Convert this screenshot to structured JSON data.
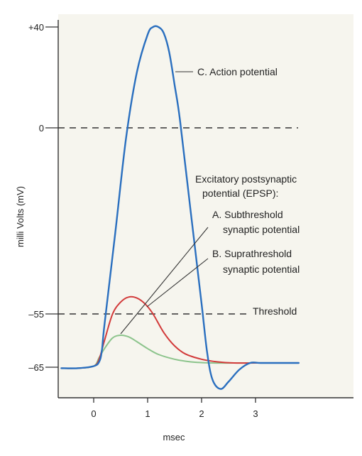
{
  "colors": {
    "background": "#ffffff",
    "plot_background": "#f6f5ee",
    "axis": "#333333",
    "action_potential": "#2a6fbf",
    "suprathreshold": "#d23a3a",
    "subthreshold": "#8cc48c",
    "reference_lines": "#333333",
    "leader_lines": "#333333"
  },
  "chart_data": {
    "type": "line",
    "xlabel": "msec",
    "ylabel": "milli Volts (mV)",
    "xlim": [
      -0.6,
      3.9
    ],
    "ylim": [
      -70,
      42
    ],
    "x_ticks": [
      0,
      1,
      2,
      3
    ],
    "x_tick_labels": [
      "0",
      "1",
      "2",
      "3"
    ],
    "y_ticks": [
      40,
      0,
      -55,
      -65
    ],
    "y_tick_labels": [
      "+40",
      "0",
      "–55",
      "–65"
    ],
    "grid": false,
    "legend": "none",
    "reference_lines": [
      {
        "y": 0,
        "style": "dashed",
        "label": ""
      },
      {
        "y": -55,
        "style": "dashed",
        "label": "Threshold"
      }
    ],
    "annotations": {
      "action_potential": "C.  Action potential",
      "epsp_header_line1": "Excitatory postsynaptic",
      "epsp_header_line2": "potential (EPSP):",
      "subthreshold_line1": "A.  Subthreshold",
      "subthreshold_line2": "synaptic potential",
      "suprathreshold_line1": "B.  Suprathreshold",
      "suprathreshold_line2": "synaptic potential"
    },
    "series": [
      {
        "key": "action_potential",
        "color": "#2a6fbf",
        "x": [
          -0.6,
          -0.3,
          0.0,
          0.1,
          0.15,
          0.2,
          0.4,
          0.6,
          0.8,
          1.0,
          1.1,
          1.2,
          1.3,
          1.4,
          1.5,
          1.6,
          1.8,
          2.0,
          2.1,
          2.2,
          2.35,
          2.5,
          2.7,
          2.9,
          3.1,
          3.5,
          3.8
        ],
        "y": [
          -65.2,
          -65.2,
          -64.8,
          -64.0,
          -62.0,
          -57.0,
          -31.0,
          -3.0,
          22.0,
          37.0,
          40.0,
          40.0,
          37.5,
          30.0,
          17.0,
          3.0,
          -25.0,
          -52.0,
          -62.0,
          -67.5,
          -69.5,
          -68.0,
          -65.5,
          -64.2,
          -64.2,
          -64.2,
          -64.2
        ]
      },
      {
        "key": "suprathreshold",
        "color": "#d23a3a",
        "x": [
          -0.6,
          -0.3,
          0.0,
          0.1,
          0.2,
          0.35,
          0.5,
          0.65,
          0.8,
          0.95,
          1.1,
          1.3,
          1.5,
          1.7,
          2.0,
          2.3,
          2.6,
          3.0,
          3.5,
          3.8
        ],
        "y": [
          -65.2,
          -65.2,
          -64.8,
          -63.5,
          -60.0,
          -55.0,
          -51.5,
          -50.0,
          -50.3,
          -52.0,
          -55.0,
          -58.5,
          -61.0,
          -62.5,
          -63.5,
          -64.0,
          -64.2,
          -64.2,
          -64.2,
          -64.2
        ]
      },
      {
        "key": "subthreshold",
        "color": "#8cc48c",
        "x": [
          -0.6,
          -0.3,
          0.0,
          0.1,
          0.2,
          0.35,
          0.5,
          0.65,
          0.8,
          1.0,
          1.2,
          1.5,
          1.8,
          2.2,
          2.6,
          3.0,
          3.5,
          3.8
        ],
        "y": [
          -65.2,
          -65.2,
          -64.8,
          -63.2,
          -61.5,
          -59.5,
          -59.0,
          -59.3,
          -60.2,
          -61.5,
          -62.6,
          -63.5,
          -64.0,
          -64.2,
          -64.2,
          -64.2,
          -64.2,
          -64.2
        ]
      }
    ]
  }
}
